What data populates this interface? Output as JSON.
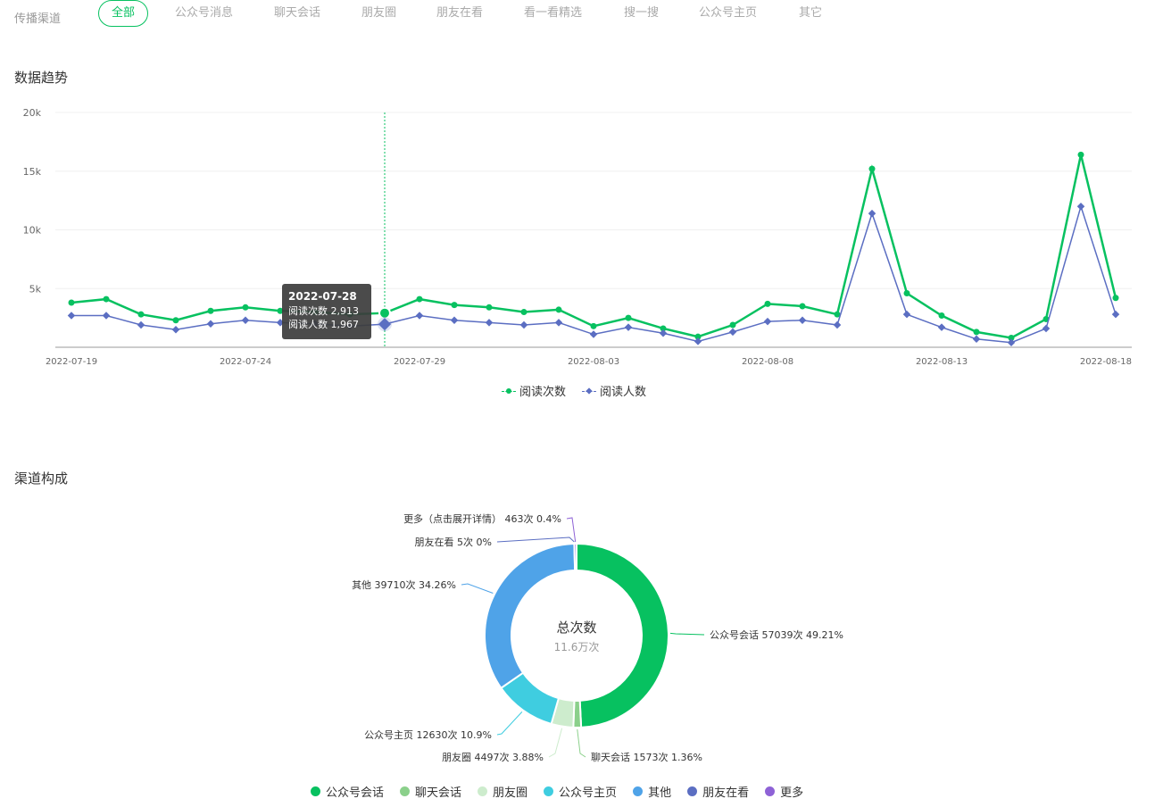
{
  "tabs": {
    "label": "传播渠道",
    "items": [
      "全部",
      "公众号消息",
      "聊天会话",
      "朋友圈",
      "朋友在看",
      "看一看精选",
      "搜一搜",
      "公众号主页",
      "其它"
    ],
    "active_index": 0
  },
  "trend": {
    "title": "数据趋势",
    "tooltip": {
      "date": "2022-07-28",
      "line1": "阅读次数 2,913",
      "line2": "阅读人数 1,967"
    },
    "legend": [
      "阅读次数",
      "阅读人数"
    ]
  },
  "composition": {
    "title": "渠道构成",
    "center_label": "总次数",
    "center_value": "11.6万次",
    "slice_labels": [
      "公众号会话 57039次 49.21%",
      "聊天会话 1573次 1.36%",
      "朋友圈 4497次 3.88%",
      "公众号主页 12630次 10.9%",
      "其他 39710次 34.26%",
      "朋友在看 5次 0%",
      "更多（点击展开详情） 463次 0.4%"
    ],
    "legend": [
      "公众号会话",
      "聊天会话",
      "朋友圈",
      "公众号主页",
      "其他",
      "朋友在看",
      "更多"
    ]
  },
  "colors": {
    "accent": "#07c160",
    "reads": "#07c160",
    "readers": "#5b6ec2",
    "slices": [
      "#07c160",
      "#8bd08b",
      "#cdeccd",
      "#3fcde0",
      "#4fa3e8",
      "#5b6ec2",
      "#8e62d6"
    ]
  },
  "chart_data": [
    {
      "type": "line",
      "title": "数据趋势",
      "x_tick_labels": [
        "2022-07-19",
        "2022-07-24",
        "2022-07-29",
        "2022-08-03",
        "2022-08-08",
        "2022-08-13",
        "2022-08-18"
      ],
      "x": [
        "2022-07-19",
        "2022-07-20",
        "2022-07-21",
        "2022-07-22",
        "2022-07-23",
        "2022-07-24",
        "2022-07-25",
        "2022-07-26",
        "2022-07-27",
        "2022-07-28",
        "2022-07-29",
        "2022-07-30",
        "2022-07-31",
        "2022-08-01",
        "2022-08-02",
        "2022-08-03",
        "2022-08-04",
        "2022-08-05",
        "2022-08-06",
        "2022-08-07",
        "2022-08-08",
        "2022-08-09",
        "2022-08-10",
        "2022-08-11",
        "2022-08-12",
        "2022-08-13",
        "2022-08-14",
        "2022-08-15",
        "2022-08-16",
        "2022-08-17",
        "2022-08-18"
      ],
      "series": [
        {
          "name": "阅读次数",
          "values": [
            3800,
            4100,
            2800,
            2300,
            3100,
            3400,
            3100,
            3000,
            2800,
            2913,
            4100,
            3600,
            3400,
            3000,
            3200,
            1800,
            2500,
            1600,
            900,
            1900,
            3700,
            3500,
            2800,
            15200,
            4600,
            2700,
            1300,
            800,
            2400,
            16400,
            4200
          ]
        },
        {
          "name": "阅读人数",
          "values": [
            2700,
            2700,
            1900,
            1500,
            2000,
            2300,
            2100,
            2000,
            1800,
            1967,
            2700,
            2300,
            2100,
            1900,
            2100,
            1100,
            1700,
            1200,
            500,
            1300,
            2200,
            2300,
            1900,
            11400,
            2800,
            1700,
            700,
            400,
            1600,
            12000,
            2800
          ]
        }
      ],
      "y_ticks": [
        "5k",
        "10k",
        "15k",
        "20k"
      ],
      "ylim": [
        0,
        20000
      ],
      "grid": true,
      "legend_position": "bottom"
    },
    {
      "type": "pie",
      "title": "渠道构成",
      "labels": [
        "公众号会话",
        "聊天会话",
        "朋友圈",
        "公众号主页",
        "其他",
        "朋友在看",
        "更多（点击展开详情）"
      ],
      "values": [
        57039,
        1573,
        4497,
        12630,
        39710,
        5,
        463
      ],
      "percents": [
        49.21,
        1.36,
        3.88,
        10.9,
        34.26,
        0,
        0.4
      ],
      "legend_position": "bottom"
    }
  ]
}
